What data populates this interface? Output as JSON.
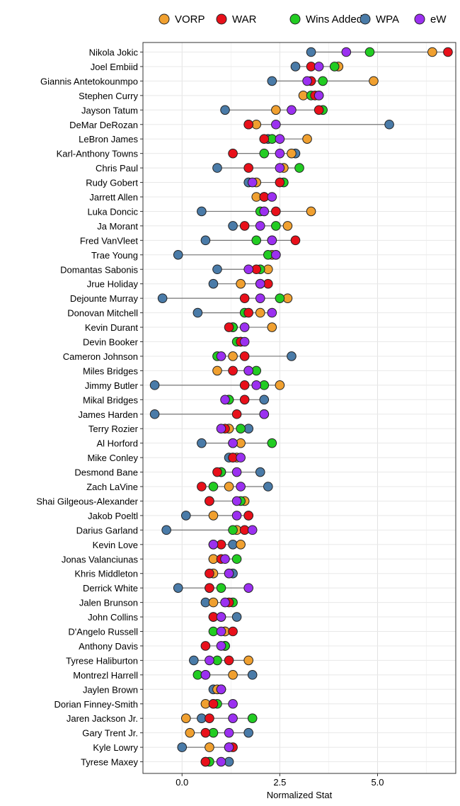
{
  "chart_data": {
    "type": "scatter",
    "xlabel": "Normalized Stat",
    "xlim": [
      -1.0,
      7.0
    ],
    "x_ticks": [
      0.0,
      2.5,
      5.0
    ],
    "x_tick_labels": [
      "0.0",
      "2.5",
      "5.0"
    ],
    "grid": true,
    "legend_position": "top",
    "series_names": [
      "VORP",
      "WAR",
      "Wins Added",
      "WPA",
      "eW"
    ],
    "series_colors": {
      "VORP": "#F0A030",
      "WAR": "#E8101A",
      "Wins Added": "#22CC22",
      "WPA": "#4A7BA8",
      "eW": "#9B30F0"
    },
    "players": [
      {
        "name": "Nikola Jokic",
        "VORP": 6.4,
        "WAR": 6.8,
        "Wins Added": 4.8,
        "WPA": 3.3,
        "eW": 4.2
      },
      {
        "name": "Joel Embiid",
        "VORP": 4.0,
        "WAR": 3.3,
        "Wins Added": 3.9,
        "WPA": 2.9,
        "eW": 3.5
      },
      {
        "name": "Giannis Antetokounmpo",
        "VORP": 4.9,
        "WAR": 3.3,
        "Wins Added": 3.6,
        "WPA": 2.3,
        "eW": 3.2
      },
      {
        "name": "Stephen Curry",
        "VORP": 3.1,
        "WAR": 3.4,
        "Wins Added": 3.3,
        "WPA": 3.5,
        "eW": 3.5
      },
      {
        "name": "Jayson Tatum",
        "VORP": 2.4,
        "WAR": 3.5,
        "Wins Added": 3.6,
        "WPA": 1.1,
        "eW": 2.8
      },
      {
        "name": "DeMar DeRozan",
        "VORP": 1.9,
        "WAR": 1.7,
        "Wins Added": 1.7,
        "WPA": 5.3,
        "eW": 2.4
      },
      {
        "name": "LeBron James",
        "VORP": 3.2,
        "WAR": 2.1,
        "Wins Added": 2.3,
        "WPA": 2.2,
        "eW": 2.5
      },
      {
        "name": "Karl-Anthony Towns",
        "VORP": 2.8,
        "WAR": 1.3,
        "Wins Added": 2.1,
        "WPA": 2.9,
        "eW": 2.5
      },
      {
        "name": "Chris Paul",
        "VORP": 2.6,
        "WAR": 1.7,
        "Wins Added": 3.0,
        "WPA": 0.9,
        "eW": 2.5
      },
      {
        "name": "Rudy Gobert",
        "VORP": 1.9,
        "WAR": 2.5,
        "Wins Added": 2.6,
        "WPA": 1.7,
        "eW": 1.8
      },
      {
        "name": "Jarrett Allen",
        "VORP": 1.9,
        "WAR": 2.1,
        "Wins Added": 2.1,
        "WPA": 2.1,
        "eW": 2.3
      },
      {
        "name": "Luka Doncic",
        "VORP": 3.3,
        "WAR": 2.4,
        "Wins Added": 2.0,
        "WPA": 0.5,
        "eW": 2.1
      },
      {
        "name": "Ja Morant",
        "VORP": 2.7,
        "WAR": 1.6,
        "Wins Added": 2.4,
        "WPA": 1.3,
        "eW": 2.0
      },
      {
        "name": "Fred VanVleet",
        "VORP": 2.3,
        "WAR": 2.9,
        "Wins Added": 1.9,
        "WPA": 0.6,
        "eW": 2.3
      },
      {
        "name": "Trae Young",
        "VORP": 2.3,
        "WAR": 2.4,
        "Wins Added": 2.2,
        "WPA": -0.1,
        "eW": 2.4
      },
      {
        "name": "Domantas Sabonis",
        "VORP": 2.2,
        "WAR": 1.9,
        "Wins Added": 2.0,
        "WPA": 0.9,
        "eW": 1.7
      },
      {
        "name": "Jrue Holiday",
        "VORP": 1.5,
        "WAR": 2.2,
        "Wins Added": 2.0,
        "WPA": 0.8,
        "eW": 2.0
      },
      {
        "name": "Dejounte Murray",
        "VORP": 2.7,
        "WAR": 1.6,
        "Wins Added": 2.5,
        "WPA": -0.5,
        "eW": 2.0
      },
      {
        "name": "Donovan Mitchell",
        "VORP": 2.0,
        "WAR": 1.7,
        "Wins Added": 1.6,
        "WPA": 0.4,
        "eW": 2.3
      },
      {
        "name": "Kevin Durant",
        "VORP": 2.3,
        "WAR": 1.2,
        "Wins Added": 1.3,
        "WPA": 1.3,
        "eW": 1.6
      },
      {
        "name": "Devin Booker",
        "VORP": 1.5,
        "WAR": 1.5,
        "Wins Added": 1.4,
        "WPA": 1.5,
        "eW": 1.6
      },
      {
        "name": "Cameron Johnson",
        "VORP": 1.3,
        "WAR": 1.6,
        "Wins Added": 0.9,
        "WPA": 2.8,
        "eW": 1.0
      },
      {
        "name": "Miles Bridges",
        "VORP": 0.9,
        "WAR": 1.3,
        "Wins Added": 1.9,
        "WPA": 1.7,
        "eW": 1.7
      },
      {
        "name": "Jimmy Butler",
        "VORP": 2.5,
        "WAR": 1.6,
        "Wins Added": 2.1,
        "WPA": -0.7,
        "eW": 1.9
      },
      {
        "name": "Mikal Bridges",
        "VORP": 1.2,
        "WAR": 1.6,
        "Wins Added": 1.2,
        "WPA": 2.1,
        "eW": 1.1
      },
      {
        "name": "James Harden",
        "VORP": 2.1,
        "WAR": 1.4,
        "Wins Added": 2.1,
        "WPA": -0.7,
        "eW": 2.1
      },
      {
        "name": "Terry Rozier",
        "VORP": 1.2,
        "WAR": 1.1,
        "Wins Added": 1.5,
        "WPA": 1.7,
        "eW": 1.0
      },
      {
        "name": "Al Horford",
        "VORP": 1.5,
        "WAR": 1.3,
        "Wins Added": 2.3,
        "WPA": 0.5,
        "eW": 1.3
      },
      {
        "name": "Mike Conley",
        "VORP": 1.4,
        "WAR": 1.3,
        "Wins Added": 1.3,
        "WPA": 1.2,
        "eW": 1.5
      },
      {
        "name": "Desmond Bane",
        "VORP": 1.0,
        "WAR": 0.9,
        "Wins Added": 1.0,
        "WPA": 2.0,
        "eW": 1.4
      },
      {
        "name": "Zach LaVine",
        "VORP": 1.2,
        "WAR": 0.5,
        "Wins Added": 0.8,
        "WPA": 2.2,
        "eW": 1.5
      },
      {
        "name": "Shai Gilgeous-Alexander",
        "VORP": 1.6,
        "WAR": 0.7,
        "Wins Added": 1.5,
        "WPA": 0.7,
        "eW": 1.4
      },
      {
        "name": "Jakob Poeltl",
        "VORP": 0.8,
        "WAR": 1.7,
        "Wins Added": 1.7,
        "WPA": 0.1,
        "eW": 1.4
      },
      {
        "name": "Darius Garland",
        "VORP": 1.4,
        "WAR": 1.6,
        "Wins Added": 1.3,
        "WPA": -0.4,
        "eW": 1.8
      },
      {
        "name": "Kevin Love",
        "VORP": 1.5,
        "WAR": 1.0,
        "Wins Added": 0.8,
        "WPA": 1.3,
        "eW": 0.8
      },
      {
        "name": "Jonas Valanciunas",
        "VORP": 0.8,
        "WAR": 1.0,
        "Wins Added": 1.4,
        "WPA": 0.8,
        "eW": 1.1
      },
      {
        "name": "Khris Middleton",
        "VORP": 0.8,
        "WAR": 0.7,
        "Wins Added": 1.2,
        "WPA": 1.3,
        "eW": 1.2
      },
      {
        "name": "Derrick White",
        "VORP": 0.7,
        "WAR": 0.7,
        "Wins Added": 1.0,
        "WPA": -0.1,
        "eW": 1.7
      },
      {
        "name": "Jalen Brunson",
        "VORP": 0.8,
        "WAR": 1.2,
        "Wins Added": 1.3,
        "WPA": 0.6,
        "eW": 1.1
      },
      {
        "name": "John Collins",
        "VORP": 0.8,
        "WAR": 0.8,
        "Wins Added": 1.0,
        "WPA": 1.4,
        "eW": 1.0
      },
      {
        "name": "D'Angelo Russell",
        "VORP": 1.1,
        "WAR": 1.3,
        "Wins Added": 0.8,
        "WPA": 1.1,
        "eW": 1.0
      },
      {
        "name": "Anthony Davis",
        "VORP": 1.1,
        "WAR": 0.6,
        "Wins Added": 1.1,
        "WPA": 1.1,
        "eW": 1.0
      },
      {
        "name": "Tyrese Haliburton",
        "VORP": 1.7,
        "WAR": 1.2,
        "Wins Added": 0.9,
        "WPA": 0.3,
        "eW": 0.7
      },
      {
        "name": "Montrezl Harrell",
        "VORP": 1.3,
        "WAR": 0.6,
        "Wins Added": 0.4,
        "WPA": 1.8,
        "eW": 0.6
      },
      {
        "name": "Jaylen Brown",
        "VORP": 0.9,
        "WAR": 1.0,
        "Wins Added": 1.0,
        "WPA": 0.8,
        "eW": 1.0
      },
      {
        "name": "Dorian Finney-Smith",
        "VORP": 0.6,
        "WAR": 0.8,
        "Wins Added": 0.9,
        "WPA": 0.8,
        "eW": 1.3
      },
      {
        "name": "Jaren Jackson Jr.",
        "VORP": 0.1,
        "WAR": 0.7,
        "Wins Added": 1.8,
        "WPA": 0.5,
        "eW": 1.3
      },
      {
        "name": "Gary Trent Jr.",
        "VORP": 0.2,
        "WAR": 0.6,
        "Wins Added": 0.8,
        "WPA": 1.7,
        "eW": 1.2
      },
      {
        "name": "Kyle Lowry",
        "VORP": 0.7,
        "WAR": 1.3,
        "Wins Added": 1.2,
        "WPA": 0.0,
        "eW": 1.2
      },
      {
        "name": "Tyrese Maxey",
        "VORP": 0.6,
        "WAR": 0.6,
        "Wins Added": 0.7,
        "WPA": 1.2,
        "eW": 1.0
      }
    ]
  }
}
